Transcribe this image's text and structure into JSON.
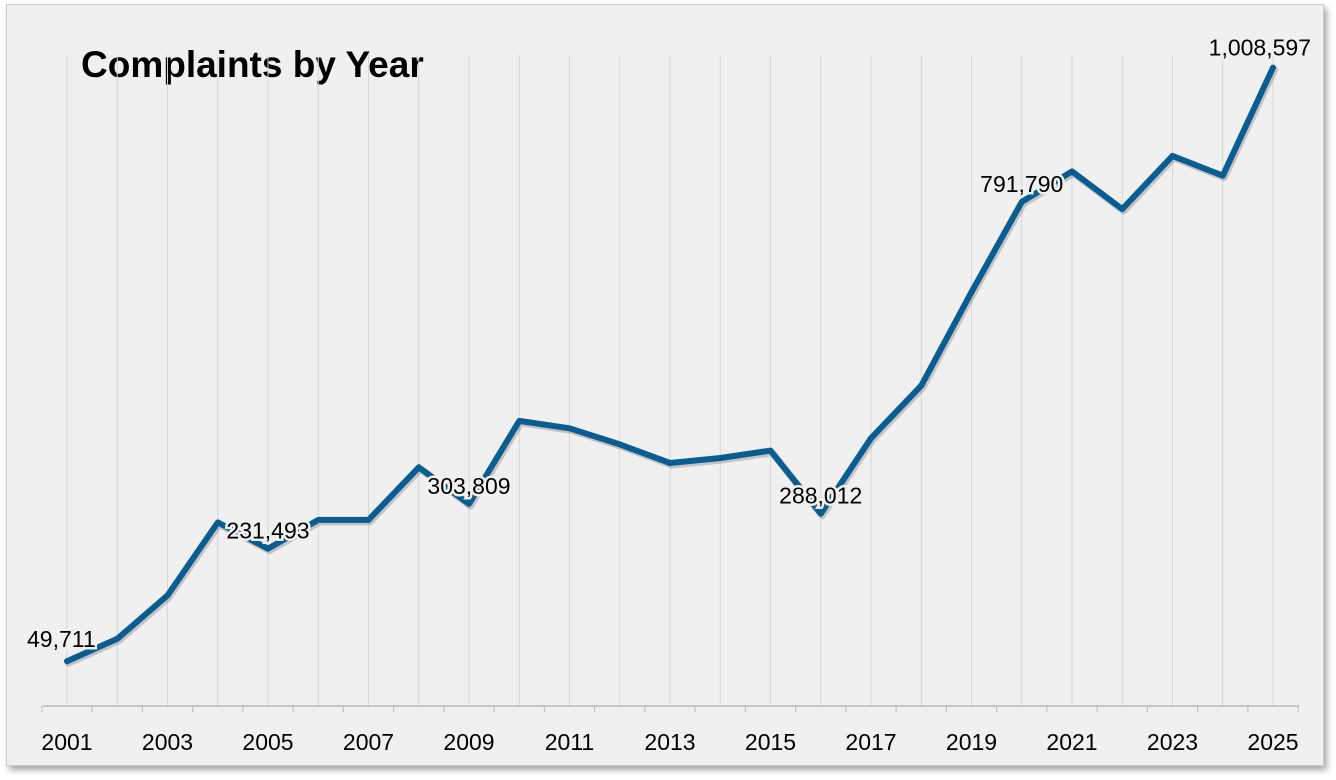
{
  "chart_data": {
    "type": "line",
    "title": "Complaints by Year",
    "xlabel": "",
    "ylabel": "",
    "x": [
      2001,
      2002,
      2003,
      2004,
      2005,
      2006,
      2007,
      2008,
      2009,
      2010,
      2011,
      2012,
      2013,
      2014,
      2015,
      2016,
      2017,
      2018,
      2019,
      2020,
      2021,
      2022,
      2023,
      2024,
      2025
    ],
    "series": [
      {
        "values": [
          49711,
          86000,
          156000,
          274000,
          231493,
          278000,
          278000,
          363000,
          303809,
          438000,
          426000,
          400000,
          370000,
          378000,
          390000,
          288012,
          410000,
          495000,
          646000,
          791790,
          841000,
          780000,
          866000,
          834000,
          1008597
        ]
      }
    ],
    "x_tick_labels": [
      "2001",
      "2003",
      "2005",
      "2007",
      "2009",
      "2011",
      "2013",
      "2015",
      "2017",
      "2019",
      "2021",
      "2023",
      "2025"
    ],
    "data_labels": [
      {
        "index": 0,
        "text": "49,711"
      },
      {
        "index": 4,
        "text": "231,493"
      },
      {
        "index": 8,
        "text": "303,809"
      },
      {
        "index": 15,
        "text": "288,012"
      },
      {
        "index": 19,
        "text": "791,790"
      },
      {
        "index": 24,
        "text": "1,008,597"
      }
    ],
    "ylim": [
      0,
      1050000
    ],
    "y_axis_visible": false,
    "grid": "vertical",
    "legend": "none",
    "line_color": "#0a5d92",
    "background_color": "#f0f0f0"
  }
}
